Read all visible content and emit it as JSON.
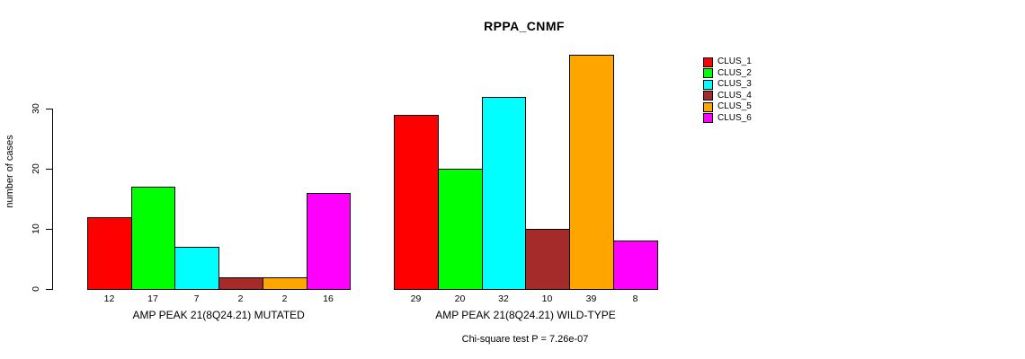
{
  "chart_data": {
    "type": "bar",
    "title": "RPPA_CNMF",
    "ylabel": "number of cases",
    "xlabel": "",
    "ylim": [
      0,
      40
    ],
    "yticks": [
      0,
      10,
      20,
      30
    ],
    "grid": false,
    "legend_position": "right",
    "categories": [
      "AMP PEAK 21(8Q24.21) MUTATED",
      "AMP PEAK 21(8Q24.21) WILD-TYPE"
    ],
    "series": [
      {
        "name": "CLUS_1",
        "color": "#FF0000",
        "values": [
          12,
          29
        ]
      },
      {
        "name": "CLUS_2",
        "color": "#00FF00",
        "values": [
          17,
          20
        ]
      },
      {
        "name": "CLUS_3",
        "color": "#00FFFF",
        "values": [
          7,
          32
        ]
      },
      {
        "name": "CLUS_4",
        "color": "#A52A2A",
        "values": [
          2,
          10
        ]
      },
      {
        "name": "CLUS_5",
        "color": "#FFA500",
        "values": [
          2,
          39
        ]
      },
      {
        "name": "CLUS_6",
        "color": "#FF00FF",
        "values": [
          16,
          8
        ]
      }
    ],
    "bar_value_labels": true,
    "footnote": "Chi-square test P = 7.26e-07"
  }
}
